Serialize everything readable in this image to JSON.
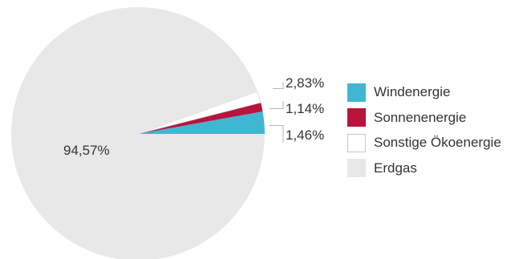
{
  "chart_data": {
    "type": "pie",
    "start": "3-o'clock, counter-clockwise",
    "slices": [
      {
        "label": "Windenergie",
        "value": 2.83,
        "display": "2,83%",
        "color": "#41b6d3"
      },
      {
        "label": "Sonnenenergie",
        "value": 1.14,
        "display": "1,14%",
        "color": "#b8143c"
      },
      {
        "label": "Sonstige Ökoenergie",
        "value": 1.46,
        "display": "1,46%",
        "color": "#ffffff"
      },
      {
        "label": "Erdgas",
        "value": 94.57,
        "display": "94,57%",
        "color": "#e8e8e8"
      }
    ],
    "legend_position": "right"
  }
}
